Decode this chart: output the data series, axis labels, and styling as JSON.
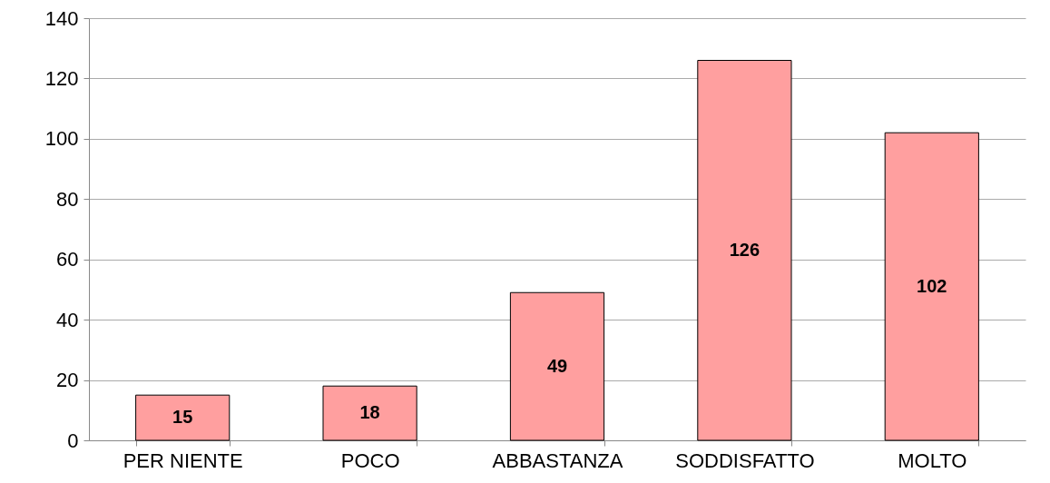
{
  "chart_data": {
    "type": "bar",
    "categories": [
      "PER NIENTE",
      "POCO",
      "ABBASTANZA",
      "SODDISFATTO",
      "MOLTO"
    ],
    "values": [
      15,
      18,
      49,
      126,
      102
    ],
    "color": "#ff9f9f",
    "ylim": [
      0,
      140
    ],
    "yticks": [
      0,
      20,
      40,
      60,
      80,
      100,
      120,
      140
    ],
    "grid": "y",
    "data_labels": true
  }
}
